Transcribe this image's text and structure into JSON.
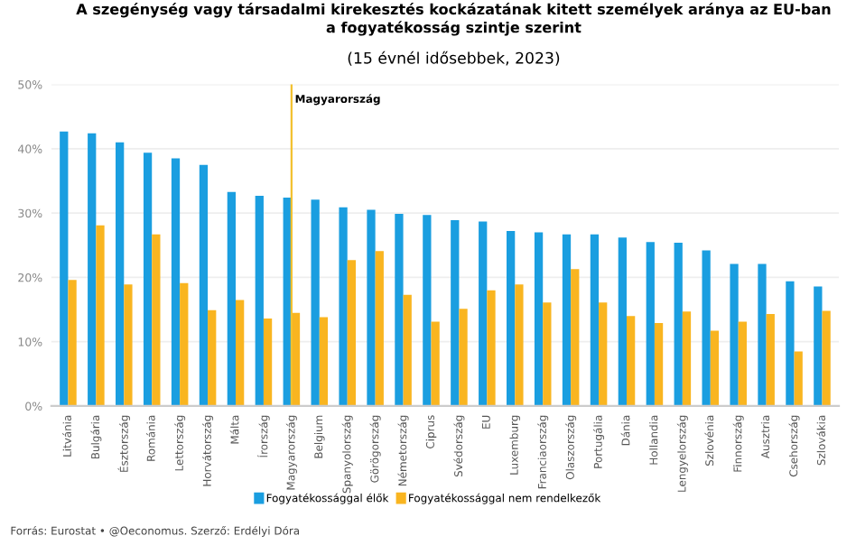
{
  "chart_data": {
    "type": "bar",
    "title": "A szegénység vagy társadalmi kirekesztés kockázatának kitett személyek aránya az EU-ban\na fogyatékosság szintje szerint",
    "subtitle": "(15 évnél idősebbek, 2023)",
    "categories": [
      "Litvánia",
      "Bulgária",
      "Észtország",
      "Románia",
      "Lettország",
      "Horvátország",
      "Málta",
      "Írország",
      "Magyarország",
      "Belgium",
      "Spanyolország",
      "Görögország",
      "Németország",
      "Ciprus",
      "Svédország",
      "EU",
      "Luxemburg",
      "Franciaország",
      "Olaszország",
      "Portugália",
      "Dánia",
      "Hollandia",
      "Lengyelország",
      "Szlovénia",
      "Finnország",
      "Ausztria",
      "Csehország",
      "Szlovákia"
    ],
    "series": [
      {
        "name": "Fogyatékossággal élők",
        "color": "#1a9ee0",
        "values": [
          42.7,
          42.4,
          41.0,
          39.4,
          38.5,
          37.5,
          33.3,
          32.7,
          32.4,
          32.1,
          30.9,
          30.5,
          29.9,
          29.7,
          28.9,
          28.7,
          27.2,
          27.0,
          26.7,
          26.7,
          26.2,
          25.5,
          25.4,
          24.2,
          22.1,
          22.1,
          19.4,
          18.6
        ]
      },
      {
        "name": "Fogyatékossággal nem rendelkezők",
        "color": "#f9b520",
        "values": [
          19.6,
          28.1,
          18.9,
          26.7,
          19.1,
          14.9,
          16.5,
          13.6,
          14.5,
          13.8,
          22.7,
          24.1,
          17.3,
          13.1,
          15.1,
          18.0,
          18.9,
          16.1,
          21.3,
          16.1,
          14.0,
          12.9,
          14.7,
          11.7,
          13.1,
          14.3,
          8.5,
          14.8
        ]
      }
    ],
    "ylim": [
      0,
      50
    ],
    "yticks": [
      {
        "value": 0,
        "label": "0%"
      },
      {
        "value": 10,
        "label": "10%"
      },
      {
        "value": 20,
        "label": "20%"
      },
      {
        "value": 30,
        "label": "30%"
      },
      {
        "value": 40,
        "label": "40%"
      },
      {
        "value": 50,
        "label": "50%"
      }
    ],
    "grid": "y",
    "legend": "bottom",
    "ref_lines": [
      {
        "axis": "x",
        "value": "Magyarország",
        "label": "Magyarország",
        "color": "#f2c12e"
      }
    ],
    "annotations": [
      "Forrás: Eurostat • @Oeconomus. Szerző: Erdélyi Dóra"
    ]
  }
}
